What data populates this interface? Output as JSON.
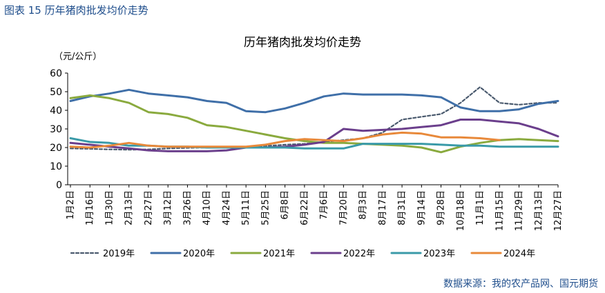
{
  "figure_label": "图表 15  历年猪肉批发均价走势",
  "source_note": "数据来源：我的农产品网、国元期货",
  "chart_data": {
    "type": "line",
    "title": "历年猪肉批发均价走势",
    "ylabel": "（元/公斤）",
    "xlabel": "",
    "ylim": [
      0,
      60
    ],
    "yticks": [
      0,
      10,
      20,
      30,
      40,
      50,
      60
    ],
    "grid": false,
    "legend_position": "bottom",
    "x_tick_labels": [
      "1月2日",
      "1月16日",
      "1月30日",
      "2月13日",
      "2月27日",
      "3月12日",
      "3月26日",
      "4月10日",
      "4月24日",
      "5月11日",
      "5月25日",
      "6月8日",
      "6月22日",
      "7月6日",
      "7月20日",
      "8月3日",
      "8月17日",
      "8月31日",
      "9月14日",
      "9月28日",
      "10月18日",
      "11月1日",
      "11月15日",
      "11月29日",
      "12月13日",
      "12月27日"
    ],
    "series": [
      {
        "name": "2019年",
        "color": "#4a5a6e",
        "dash": "dotted",
        "values": [
          19.5,
          19.3,
          19.0,
          18.8,
          19.0,
          19.5,
          19.8,
          20.0,
          20.3,
          20.5,
          20.8,
          21.5,
          22.0,
          23.0,
          24.0,
          25.0,
          28.0,
          35.0,
          36.5,
          38.0,
          44.0,
          52.5,
          44.0,
          43.0,
          44.0,
          44.0
        ]
      },
      {
        "name": "2020年",
        "color": "#3f6fa8",
        "dash": "solid",
        "values": [
          45.0,
          47.5,
          49.0,
          51.0,
          49.0,
          48.0,
          47.0,
          45.0,
          44.0,
          39.5,
          39.0,
          41.0,
          44.0,
          47.5,
          49.0,
          48.5,
          48.5,
          48.5,
          48.0,
          47.0,
          41.5,
          39.5,
          39.5,
          40.5,
          43.5,
          45.0
        ]
      },
      {
        "name": "2021年",
        "color": "#8aaa3e",
        "dash": "solid",
        "values": [
          46.5,
          48.0,
          46.5,
          44.0,
          39.0,
          38.0,
          36.0,
          32.0,
          31.0,
          29.0,
          27.0,
          25.0,
          23.5,
          22.5,
          22.5,
          22.0,
          21.5,
          21.0,
          20.0,
          17.5,
          20.5,
          22.5,
          24.0,
          24.5,
          24.0,
          23.5
        ]
      },
      {
        "name": "2022年",
        "color": "#6b3f8c",
        "dash": "solid",
        "values": [
          22.5,
          21.5,
          20.5,
          19.5,
          18.5,
          18.0,
          18.0,
          18.0,
          18.5,
          20.0,
          20.0,
          20.5,
          21.5,
          23.0,
          30.0,
          29.0,
          29.5,
          30.0,
          31.0,
          32.0,
          35.0,
          35.0,
          34.0,
          33.0,
          30.0,
          26.0
        ]
      },
      {
        "name": "2023年",
        "color": "#3a9aa8",
        "dash": "solid",
        "values": [
          25.0,
          23.0,
          22.5,
          21.0,
          21.0,
          20.5,
          20.5,
          20.0,
          20.0,
          20.0,
          20.0,
          20.0,
          19.5,
          19.5,
          19.5,
          22.0,
          22.0,
          22.0,
          22.0,
          21.5,
          21.0,
          21.0,
          20.5,
          20.5,
          20.5,
          20.5
        ]
      },
      {
        "name": "2024年",
        "color": "#e8893a",
        "dash": "solid",
        "values": [
          20.5,
          20.0,
          21.0,
          22.5,
          21.0,
          20.5,
          20.5,
          20.5,
          20.5,
          20.5,
          21.5,
          23.5,
          24.5,
          24.0,
          23.5,
          25.0,
          27.0,
          28.0,
          27.5,
          25.5,
          25.5,
          25.0,
          24.0
        ]
      }
    ]
  }
}
